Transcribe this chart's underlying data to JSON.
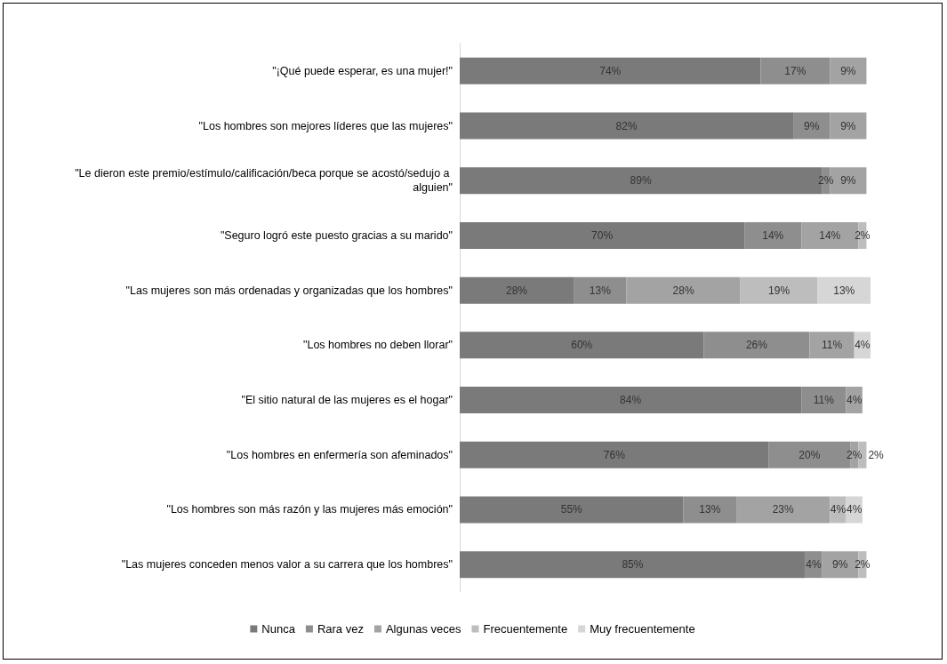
{
  "chart_data": {
    "type": "bar",
    "orientation": "horizontal",
    "stacked": true,
    "legend": "bottom",
    "categories": [
      "\"¡Qué puede esperar, es una mujer!\"",
      "\"Los hombres son mejores líderes que las mujeres\"",
      "\"Le dieron este premio/estímulo/calificación/beca porque se acostó/sedujo a alguien\"",
      "\"Seguro logró este puesto gracias a su marido\"",
      "\"Las mujeres son más ordenadas y organizadas que los hombres\"",
      "\"Los hombres no deben llorar\"",
      "\"El sitio natural de las mujeres es el hogar\"",
      "\"Los hombres en enfermería son afeminados\"",
      "\"Los hombres son más razón y las mujeres más emoción\"",
      "\"Las mujeres conceden menos valor a su carrera que los hombres\""
    ],
    "series": [
      {
        "name": "Nunca",
        "color": "#7a7a7a",
        "values": [
          74,
          82,
          89,
          70,
          28,
          60,
          84,
          76,
          55,
          85
        ],
        "value_labels": [
          "74%",
          "82%",
          "89%",
          "70%",
          "28%",
          "60%",
          "84%",
          "76%",
          "55%",
          "85%"
        ]
      },
      {
        "name": "Rara vez",
        "color": "#8e8e8e",
        "values": [
          17,
          9,
          2,
          14,
          13,
          26,
          11,
          20,
          13,
          4
        ],
        "value_labels": [
          "17%",
          "9%",
          "2%",
          "14%",
          "13%",
          "26%",
          "11%",
          "20%",
          "13%",
          "4%"
        ]
      },
      {
        "name": "Algunas veces",
        "color": "#a3a3a3",
        "values": [
          9,
          9,
          9,
          14,
          28,
          11,
          4,
          2,
          23,
          9
        ],
        "value_labels": [
          "9%",
          "9%",
          "9%",
          "14%",
          "28%",
          "11%",
          "4%",
          "2%",
          "23%",
          "9%"
        ]
      },
      {
        "name": "Frecuentemente",
        "color": "#bdbdbd",
        "values": [
          null,
          null,
          null,
          2,
          19,
          null,
          null,
          2,
          4,
          2
        ],
        "value_labels": [
          null,
          null,
          null,
          "2%",
          "19%",
          null,
          null,
          "2%",
          "4%",
          "2%"
        ]
      },
      {
        "name": "Muy frecuentemente",
        "color": "#d6d6d6",
        "values": [
          null,
          null,
          null,
          null,
          13,
          4,
          null,
          null,
          4,
          null
        ],
        "value_labels": [
          null,
          null,
          null,
          null,
          "13%",
          "4%",
          null,
          null,
          "4%",
          null
        ]
      }
    ]
  }
}
